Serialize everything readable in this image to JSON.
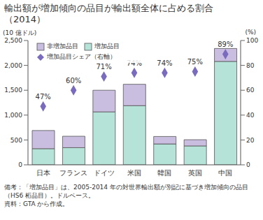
{
  "chart_data": {
    "type": "bar",
    "title": "輸出額が増加傾向の品目が輸出額全体に占める割合（2014）",
    "ylabel": "(10 億ドル)",
    "y2label": "(%)",
    "stacked": true,
    "legend": "upper left",
    "categories": [
      "日本",
      "フランス",
      "ドイツ",
      "米国",
      "韓国",
      "英国",
      "中国"
    ],
    "ylim": [
      0,
      2500
    ],
    "yticks": [
      0,
      500,
      {
        "value": 1000,
        "label": "1,000"
      },
      {
        "value": 1500,
        "label": "1,500"
      },
      {
        "value": 2000,
        "label": "2,000"
      },
      {
        "value": 2500,
        "label": "2,500"
      }
    ],
    "y2lim": [
      0,
      100
    ],
    "y2ticks": [
      0,
      20,
      40,
      60,
      80,
      100
    ],
    "series": [
      {
        "name": "非増加品目",
        "color": "#c9bde0",
        "values": [
          365,
          230,
          435,
          430,
          150,
          125,
          260
        ]
      },
      {
        "name": "増加品目",
        "color": "#b5e3d8",
        "values": [
          325,
          345,
          1065,
          1190,
          420,
          380,
          2080
        ]
      },
      {
        "name": "増加品目シェア（右軸）",
        "type": "scatter",
        "marker": "diamond",
        "axis": "y2",
        "data_labels": true,
        "color": "#7a6bbf",
        "values": [
          47,
          60,
          71,
          74,
          74,
          75,
          89
        ],
        "value_labels": [
          "47%",
          "60%",
          "71%",
          "74%",
          "74%",
          "75%",
          "89%"
        ]
      }
    ],
    "notes": [
      "備考：「増加品目」は、2005-2014 年の対世界輸出額が別記に基づき増加傾向の品目（HS6 桁品目）。ドルベース。",
      "資料：GTA から作成。"
    ]
  }
}
